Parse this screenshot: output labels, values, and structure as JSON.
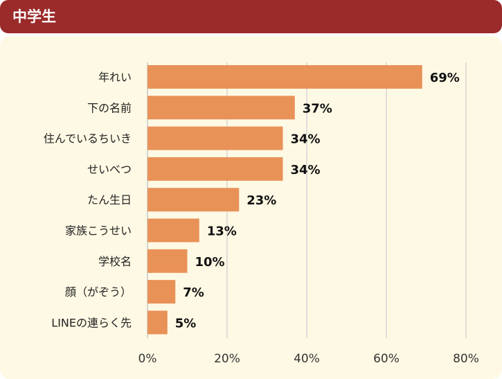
{
  "header": {
    "title": "中学生"
  },
  "chart_data": {
    "type": "bar",
    "orientation": "horizontal",
    "categories": [
      "年れい",
      "下の名前",
      "住んでいるちいき",
      "せいべつ",
      "たん生日",
      "家族こうせい",
      "学校名",
      "顔（がぞう）",
      "LINEの連らく先"
    ],
    "values": [
      69,
      37,
      34,
      34,
      23,
      13,
      10,
      7,
      5
    ],
    "value_labels": [
      "69%",
      "37%",
      "34%",
      "34%",
      "23%",
      "13%",
      "10%",
      "7%",
      "5%"
    ],
    "xlim": [
      0,
      80
    ],
    "xticks": [
      0,
      20,
      40,
      60,
      80
    ],
    "xtick_labels": [
      "0%",
      "20%",
      "40%",
      "60%",
      "80%"
    ],
    "grid": true,
    "bar_color": "#e89258",
    "title": "",
    "xlabel": "",
    "ylabel": ""
  }
}
